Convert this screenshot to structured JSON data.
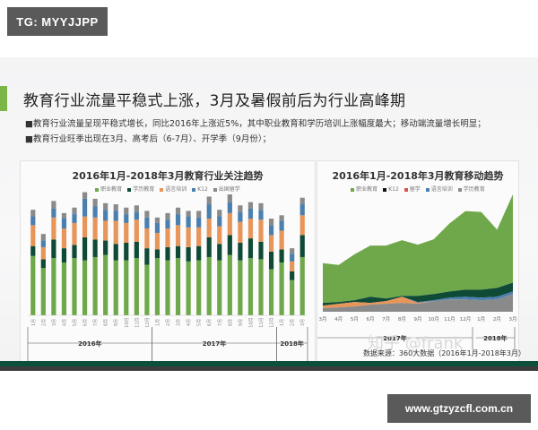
{
  "watermark_tag": "TG: MYYJJPP",
  "slide": {
    "title": "教育行业流量平稳式上涨，3月及暑假前后为行业高峰期",
    "bullets": [
      "■教育行业流量呈现平稳式增长，同比2016年上涨近5%，其中职业教育和学历培训上涨幅度最大；移动端流量增长明显；",
      "■教育行业旺季出现在3月、高考后（6-7月）、开学季（9月份）；"
    ],
    "source": "数据来源：360大数据（2016年1月-2018年3月）",
    "zhihu_watermark": "知乎 @frank"
  },
  "site_url": "www.gtzyzcfl.com.cn",
  "colors": {
    "green": "#6fa84a",
    "darkgreen": "#0f4a36",
    "orange": "#e8955a",
    "blue": "#4a7fb0",
    "gray": "#8a8a8a"
  },
  "chart_data": [
    {
      "type": "bar",
      "stacked": true,
      "title": "2016年1月-2018年3月教育行业关注趋势",
      "legend": [
        "职业教育",
        "学历教育",
        "语言培训",
        "K12",
        "出国留学"
      ],
      "categories": [
        "1月",
        "2月",
        "3月",
        "4月",
        "5月",
        "6月",
        "7月",
        "8月",
        "9月",
        "10月",
        "11月",
        "12月",
        "1月",
        "2月",
        "3月",
        "4月",
        "5月",
        "6月",
        "7月",
        "8月",
        "9月",
        "10月",
        "11月",
        "12月",
        "1月",
        "2月",
        "3月"
      ],
      "year_groups": [
        {
          "label": "2016年",
          "from": 0,
          "to": 11
        },
        {
          "label": "2017年",
          "from": 12,
          "to": 23
        },
        {
          "label": "2018年",
          "from": 24,
          "to": 26
        }
      ],
      "series": [
        {
          "name": "职业教育",
          "values": [
            54,
            43,
            52,
            48,
            52,
            50,
            53,
            55,
            50,
            50,
            52,
            46,
            52,
            50,
            52,
            49,
            50,
            53,
            50,
            55,
            50,
            52,
            51,
            42,
            48,
            32,
            53
          ]
        },
        {
          "name": "学历教育",
          "values": [
            9,
            8,
            17,
            13,
            12,
            21,
            16,
            13,
            15,
            16,
            15,
            15,
            8,
            12,
            11,
            13,
            13,
            18,
            15,
            18,
            16,
            18,
            16,
            16,
            12,
            8,
            20
          ]
        },
        {
          "name": "语言培训",
          "values": [
            19,
            11,
            20,
            18,
            20,
            19,
            20,
            18,
            21,
            18,
            20,
            18,
            15,
            17,
            19,
            18,
            17,
            17,
            16,
            20,
            19,
            18,
            20,
            15,
            17,
            9,
            18
          ]
        },
        {
          "name": "K12",
          "values": [
            8,
            6,
            8,
            9,
            8,
            16,
            10,
            10,
            9,
            8,
            7,
            10,
            9,
            8,
            10,
            10,
            9,
            13,
            9,
            10,
            9,
            9,
            9,
            9,
            9,
            7,
            10
          ]
        },
        {
          "name": "出国留学",
          "values": [
            6,
            6,
            7,
            5,
            6,
            6,
            7,
            6,
            6,
            6,
            6,
            6,
            5,
            6,
            6,
            5,
            6,
            7,
            6,
            7,
            6,
            6,
            6,
            6,
            5,
            5,
            6
          ]
        }
      ],
      "ylim": [
        0,
        110
      ]
    },
    {
      "type": "area",
      "stacked": true,
      "title": "2016年1月-2018年3月教育移动趋势",
      "legend": [
        "职业教育",
        "K12",
        "留学",
        "语言培训",
        "学历教育"
      ],
      "categories": [
        "3月",
        "4月",
        "5月",
        "6月",
        "7月",
        "8月",
        "9月",
        "10月",
        "11月",
        "12月",
        "1月",
        "2月",
        "3月"
      ],
      "year_groups": [
        {
          "label": "2017年",
          "from": 0,
          "to": 9
        },
        {
          "label": "2018年",
          "from": 10,
          "to": 12
        }
      ],
      "series": [
        {
          "name": "学历教育",
          "values": [
            4,
            5,
            6,
            8,
            9,
            10,
            9,
            12,
            14,
            14,
            13,
            14,
            20
          ]
        },
        {
          "name": "留学",
          "values": [
            3,
            4,
            5,
            2,
            3,
            7,
            1,
            0,
            0,
            0,
            0,
            0,
            0
          ]
        },
        {
          "name": "语言培训",
          "values": [
            0,
            0,
            0,
            0,
            0,
            0,
            1,
            1,
            2,
            3,
            3,
            3,
            3
          ]
        },
        {
          "name": "K12",
          "values": [
            3,
            2,
            2,
            7,
            3,
            1,
            7,
            7,
            7,
            8,
            9,
            10,
            10
          ]
        },
        {
          "name": "职业教育",
          "values": [
            45,
            42,
            52,
            58,
            60,
            63,
            58,
            62,
            77,
            89,
            88,
            66,
            100
          ]
        }
      ],
      "ylim": [
        0,
        140
      ]
    }
  ]
}
